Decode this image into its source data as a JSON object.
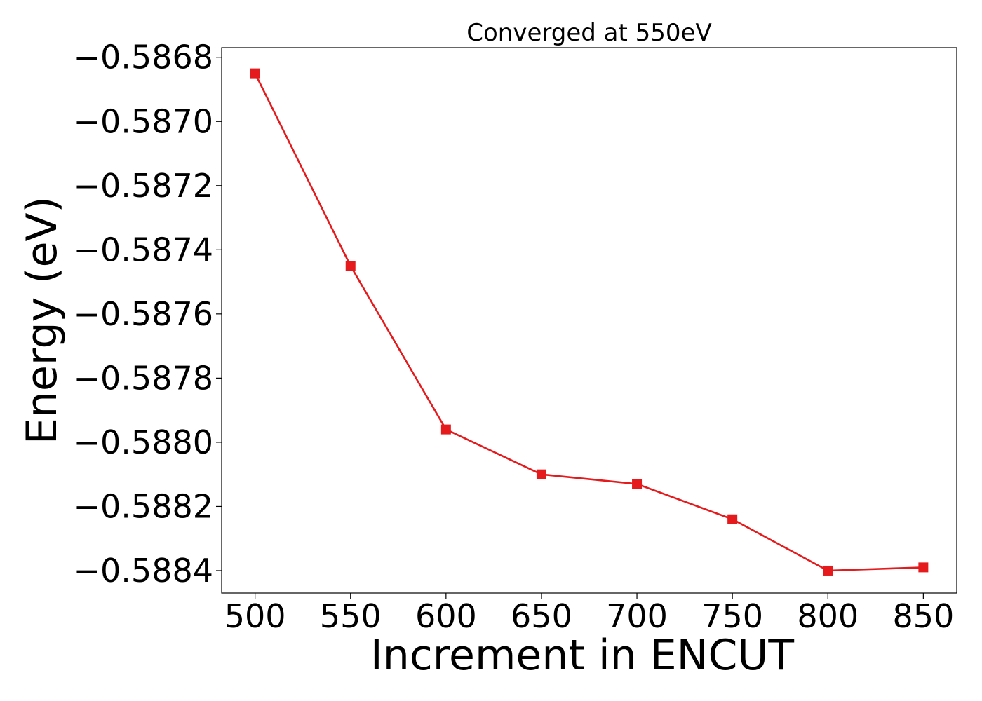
{
  "chart_data": {
    "type": "line",
    "title": "Converged at 550eV",
    "xlabel": "Increment in ENCUT",
    "ylabel": "Energy (eV)",
    "x": [
      500,
      550,
      600,
      650,
      700,
      750,
      800,
      850
    ],
    "series": [
      {
        "values": [
          -0.58685,
          -0.58745,
          -0.58796,
          -0.5881,
          -0.58813,
          -0.58824,
          -0.5884,
          -0.58839
        ],
        "color": "#e41a1c",
        "marker": "square"
      }
    ],
    "xticks": [
      500,
      550,
      600,
      650,
      700,
      750,
      800,
      850
    ],
    "xtick_labels": [
      "500",
      "550",
      "600",
      "650",
      "700",
      "750",
      "800",
      "850"
    ],
    "yticks": [
      -0.5868,
      -0.587,
      -0.5872,
      -0.5874,
      -0.5876,
      -0.5878,
      -0.588,
      -0.5882,
      -0.5884
    ],
    "ytick_labels": [
      "−0.5868",
      "−0.5870",
      "−0.5872",
      "−0.5874",
      "−0.5876",
      "−0.5878",
      "−0.5880",
      "−0.5882",
      "−0.5884"
    ],
    "xlim": [
      482.5,
      867.5
    ],
    "ylim": [
      -0.58847,
      -0.58677
    ],
    "grid": false,
    "legend": false
  }
}
